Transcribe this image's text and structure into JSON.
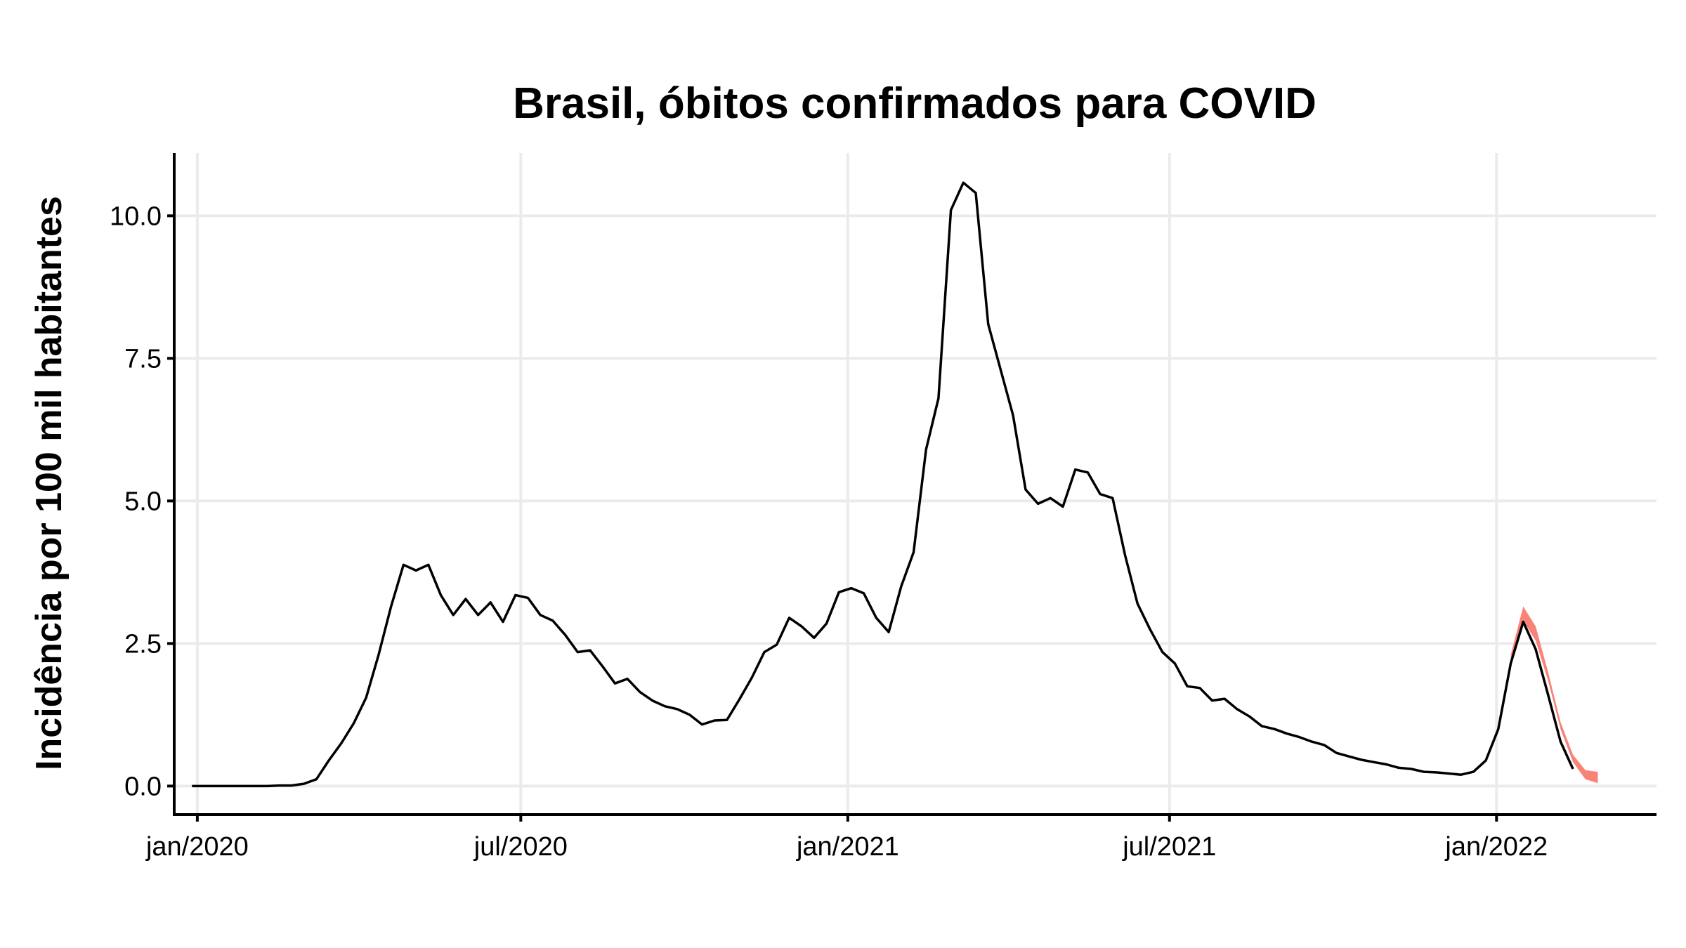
{
  "chart_data": {
    "type": "line",
    "title": "Brasil, óbitos confirmados para COVID",
    "ylabel": "Incidência por 100 mil habitantes",
    "xlabel": "",
    "x_tick_labels": [
      "jan/2020",
      "jul/2020",
      "jan/2021",
      "jul/2021",
      "jan/2022"
    ],
    "x_ticks": [
      "2020-01-01",
      "2020-07-01",
      "2021-01-01",
      "2021-07-01",
      "2022-01-01"
    ],
    "xlim": [
      "2019-12-19",
      "2022-04-01"
    ],
    "y_tick_labels": [
      "0.0",
      "2.5",
      "5.0",
      "7.5",
      "10.0"
    ],
    "y_ticks": [
      0,
      2.5,
      5,
      7.5,
      10
    ],
    "ylim": [
      -0.5,
      11.1
    ],
    "grid": true,
    "series": [
      {
        "color": "#000000",
        "x": [
          "2019-12-29",
          "2020-01-05",
          "2020-01-12",
          "2020-01-19",
          "2020-01-26",
          "2020-02-02",
          "2020-02-09",
          "2020-02-16",
          "2020-02-23",
          "2020-03-01",
          "2020-03-08",
          "2020-03-15",
          "2020-03-22",
          "2020-03-29",
          "2020-04-05",
          "2020-04-12",
          "2020-04-19",
          "2020-04-26",
          "2020-05-03",
          "2020-05-10",
          "2020-05-17",
          "2020-05-24",
          "2020-05-31",
          "2020-06-07",
          "2020-06-14",
          "2020-06-21",
          "2020-06-28",
          "2020-07-05",
          "2020-07-12",
          "2020-07-19",
          "2020-07-26",
          "2020-08-02",
          "2020-08-09",
          "2020-08-16",
          "2020-08-23",
          "2020-08-30",
          "2020-09-06",
          "2020-09-13",
          "2020-09-20",
          "2020-09-27",
          "2020-10-04",
          "2020-10-11",
          "2020-10-18",
          "2020-10-25",
          "2020-11-01",
          "2020-11-08",
          "2020-11-15",
          "2020-11-22",
          "2020-11-29",
          "2020-12-06",
          "2020-12-13",
          "2020-12-20",
          "2020-12-27",
          "2021-01-03",
          "2021-01-10",
          "2021-01-17",
          "2021-01-24",
          "2021-01-31",
          "2021-02-07",
          "2021-02-14",
          "2021-02-21",
          "2021-02-28",
          "2021-03-07",
          "2021-03-14",
          "2021-03-21",
          "2021-03-28",
          "2021-04-04",
          "2021-04-11",
          "2021-04-18",
          "2021-04-25",
          "2021-05-02",
          "2021-05-09",
          "2021-05-16",
          "2021-05-23",
          "2021-05-30",
          "2021-06-06",
          "2021-06-13",
          "2021-06-20",
          "2021-06-27",
          "2021-07-04",
          "2021-07-11",
          "2021-07-18",
          "2021-07-25",
          "2021-08-01",
          "2021-08-08",
          "2021-08-15",
          "2021-08-22",
          "2021-08-29",
          "2021-09-05",
          "2021-09-12",
          "2021-09-19",
          "2021-09-26",
          "2021-10-03",
          "2021-10-10",
          "2021-10-17",
          "2021-10-24",
          "2021-10-31",
          "2021-11-07",
          "2021-11-14",
          "2021-11-21",
          "2021-11-28",
          "2021-12-05",
          "2021-12-12",
          "2021-12-19",
          "2021-12-26",
          "2022-01-02",
          "2022-01-09",
          "2022-01-16",
          "2022-01-23",
          "2022-01-30",
          "2022-02-06",
          "2022-02-13"
        ],
        "y": [
          0,
          0,
          0,
          0,
          0,
          0,
          0,
          0.01,
          0.01,
          0.04,
          0.12,
          0.45,
          0.75,
          1.1,
          1.55,
          2.3,
          3.15,
          3.88,
          3.78,
          3.88,
          3.35,
          3.0,
          3.28,
          3.0,
          3.22,
          2.88,
          3.35,
          3.3,
          3.0,
          2.9,
          2.65,
          2.35,
          2.38,
          2.1,
          1.8,
          1.88,
          1.65,
          1.5,
          1.4,
          1.35,
          1.25,
          1.08,
          1.15,
          1.16,
          1.52,
          1.9,
          2.35,
          2.48,
          2.95,
          2.8,
          2.6,
          2.85,
          3.4,
          3.47,
          3.38,
          2.95,
          2.7,
          3.5,
          4.1,
          5.9,
          6.8,
          10.1,
          10.58,
          10.4,
          8.1,
          7.3,
          6.5,
          5.2,
          4.95,
          5.05,
          4.9,
          5.55,
          5.5,
          5.12,
          5.05,
          4.05,
          3.2,
          2.75,
          2.35,
          2.15,
          1.75,
          1.72,
          1.5,
          1.53,
          1.35,
          1.22,
          1.05,
          1.0,
          0.92,
          0.86,
          0.78,
          0.72,
          0.58,
          0.52,
          0.46,
          0.42,
          0.38,
          0.32,
          0.3,
          0.25,
          0.24,
          0.22,
          0.2,
          0.25,
          0.45,
          1.0,
          2.15,
          2.88,
          2.4,
          1.6,
          0.78,
          0.3
        ]
      }
    ],
    "band": {
      "color": "#f88379",
      "x": [
        "2022-01-09",
        "2022-01-16",
        "2022-01-23",
        "2022-01-30",
        "2022-02-06",
        "2022-02-13",
        "2022-02-20",
        "2022-02-27"
      ],
      "lower": [
        2.1,
        2.9,
        2.55,
        1.85,
        1.0,
        0.42,
        0.12,
        0.05
      ],
      "upper": [
        2.3,
        3.15,
        2.8,
        2.0,
        1.12,
        0.55,
        0.28,
        0.25
      ]
    }
  }
}
